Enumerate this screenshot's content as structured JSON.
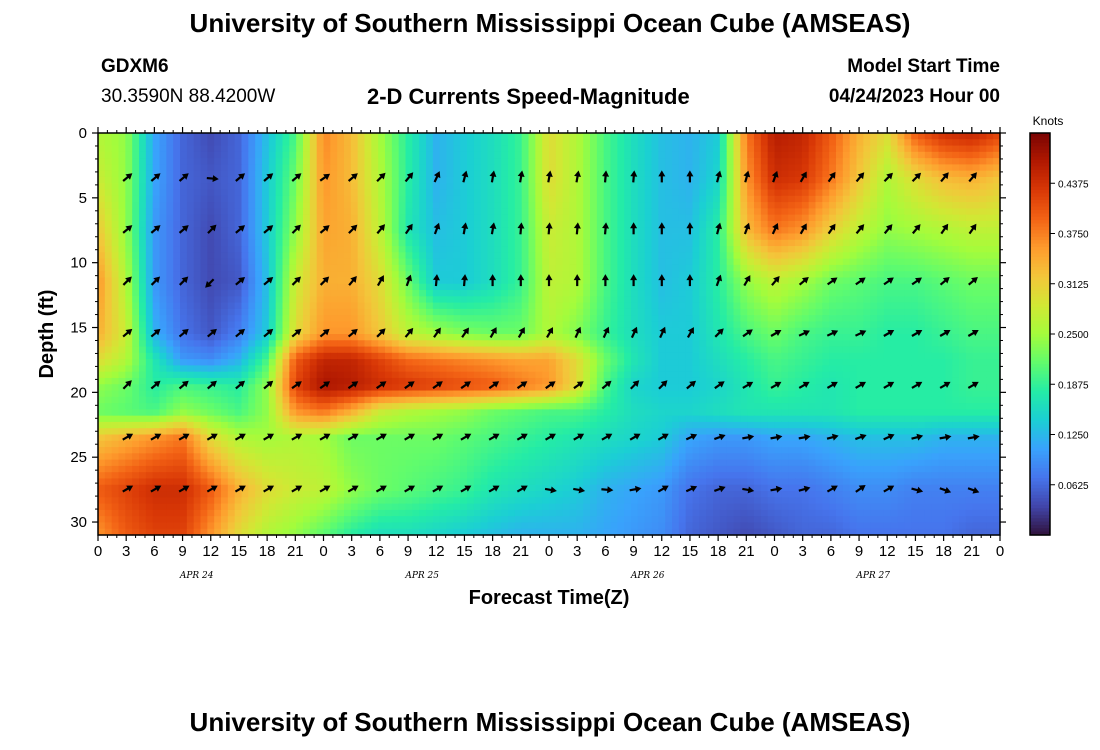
{
  "header": {
    "title": "University of Southern Mississippi Ocean Cube (AMSEAS)",
    "station": "GDXM6",
    "coords": "30.3590N  88.4200W",
    "subtitle": "2-D Currents Speed-Magnitude",
    "start_label": "Model Start Time",
    "start_value": "04/24/2023 Hour 00"
  },
  "footer": {
    "title": "University of Southern Mississippi Ocean Cube (AMSEAS)"
  },
  "chart_data": {
    "type": "heatmap",
    "title": "2-D Currents Speed-Magnitude",
    "xlabel": "Forecast Time(Z)",
    "ylabel": "Depth (ft)",
    "x_range_hours": [
      0,
      96
    ],
    "x_tick_labels": [
      "0",
      "3",
      "6",
      "9",
      "12",
      "15",
      "18",
      "21",
      "0",
      "3",
      "6",
      "9",
      "12",
      "15",
      "18",
      "21",
      "0",
      "3",
      "6",
      "9",
      "12",
      "15",
      "18",
      "21",
      "0",
      "3",
      "6",
      "9",
      "12",
      "15",
      "18",
      "21",
      "0"
    ],
    "date_labels": [
      {
        "label": "APR 24",
        "hour": 10.5
      },
      {
        "label": "APR 25",
        "hour": 34.5
      },
      {
        "label": "APR 26",
        "hour": 58.5
      },
      {
        "label": "APR 27",
        "hour": 82.5
      }
    ],
    "y_range_ft": [
      0,
      31
    ],
    "y_ticks": [
      0,
      5,
      10,
      15,
      20,
      25,
      30
    ],
    "colorbar": {
      "unit": "Knots",
      "range": [
        0.0,
        0.5
      ],
      "tick_labels": [
        "0.4375",
        "0.3750",
        "0.3125",
        "0.2500",
        "0.1875",
        "0.1250",
        "0.0625"
      ],
      "colors": [
        "#30123b",
        "#4145ab",
        "#4675ed",
        "#39a2fc",
        "#1bcfd4",
        "#24eca6",
        "#61fc6c",
        "#a4fc3b",
        "#d1e834",
        "#f3c63a",
        "#fe9b2d",
        "#f36315",
        "#d93806",
        "#b11901",
        "#7a0403"
      ]
    },
    "arrow_depths_ft": [
      3.5,
      7.5,
      11.5,
      15.5,
      19.5,
      23.5,
      27.5
    ],
    "speed_grid_depths_ft": [
      0,
      3.5,
      7.5,
      11.5,
      15.5,
      17.5,
      19.5,
      21.5,
      23.5,
      27.5,
      31
    ],
    "speed_grid_hours": [
      0,
      3,
      6,
      9,
      12,
      15,
      18,
      21,
      24,
      27,
      30,
      33,
      36,
      39,
      42,
      45,
      48,
      51,
      54,
      57,
      60,
      63,
      66,
      69,
      72,
      75,
      78,
      81,
      84,
      87,
      90,
      93,
      96
    ],
    "speed_knots": [
      [
        0.26,
        0.24,
        0.11,
        0.06,
        0.04,
        0.06,
        0.13,
        0.2,
        0.37,
        0.33,
        0.25,
        0.18,
        0.12,
        0.14,
        0.16,
        0.19,
        0.3,
        0.26,
        0.2,
        0.16,
        0.13,
        0.12,
        0.14,
        0.38,
        0.46,
        0.45,
        0.4,
        0.34,
        0.3,
        0.4,
        0.44,
        0.45,
        0.42
      ],
      [
        0.28,
        0.24,
        0.11,
        0.06,
        0.05,
        0.06,
        0.14,
        0.22,
        0.36,
        0.33,
        0.26,
        0.18,
        0.12,
        0.14,
        0.16,
        0.19,
        0.3,
        0.26,
        0.2,
        0.16,
        0.13,
        0.12,
        0.15,
        0.36,
        0.44,
        0.43,
        0.38,
        0.32,
        0.26,
        0.3,
        0.33,
        0.34,
        0.32
      ],
      [
        0.32,
        0.24,
        0.1,
        0.06,
        0.04,
        0.06,
        0.14,
        0.24,
        0.35,
        0.34,
        0.27,
        0.17,
        0.13,
        0.14,
        0.16,
        0.19,
        0.28,
        0.26,
        0.2,
        0.16,
        0.13,
        0.13,
        0.18,
        0.33,
        0.38,
        0.36,
        0.31,
        0.27,
        0.24,
        0.25,
        0.26,
        0.27,
        0.27
      ],
      [
        0.36,
        0.26,
        0.1,
        0.06,
        0.04,
        0.05,
        0.13,
        0.28,
        0.34,
        0.34,
        0.3,
        0.22,
        0.14,
        0.14,
        0.16,
        0.19,
        0.27,
        0.26,
        0.2,
        0.16,
        0.13,
        0.14,
        0.18,
        0.24,
        0.27,
        0.25,
        0.22,
        0.21,
        0.2,
        0.2,
        0.21,
        0.22,
        0.22
      ],
      [
        0.34,
        0.28,
        0.12,
        0.07,
        0.05,
        0.08,
        0.14,
        0.3,
        0.36,
        0.36,
        0.32,
        0.27,
        0.25,
        0.23,
        0.22,
        0.22,
        0.26,
        0.23,
        0.19,
        0.16,
        0.14,
        0.14,
        0.17,
        0.2,
        0.22,
        0.2,
        0.19,
        0.19,
        0.18,
        0.18,
        0.19,
        0.2,
        0.2
      ],
      [
        0.3,
        0.26,
        0.17,
        0.1,
        0.09,
        0.12,
        0.2,
        0.4,
        0.45,
        0.45,
        0.42,
        0.39,
        0.38,
        0.37,
        0.36,
        0.35,
        0.35,
        0.3,
        0.22,
        0.17,
        0.14,
        0.14,
        0.16,
        0.18,
        0.2,
        0.19,
        0.18,
        0.18,
        0.18,
        0.18,
        0.18,
        0.19,
        0.19
      ],
      [
        0.24,
        0.22,
        0.18,
        0.2,
        0.19,
        0.18,
        0.24,
        0.42,
        0.47,
        0.46,
        0.44,
        0.43,
        0.42,
        0.41,
        0.4,
        0.38,
        0.36,
        0.3,
        0.2,
        0.15,
        0.14,
        0.14,
        0.15,
        0.17,
        0.19,
        0.18,
        0.17,
        0.18,
        0.18,
        0.18,
        0.18,
        0.19,
        0.19
      ],
      [
        0.22,
        0.21,
        0.2,
        0.24,
        0.22,
        0.2,
        0.24,
        0.36,
        0.38,
        0.34,
        0.28,
        0.26,
        0.25,
        0.24,
        0.22,
        0.21,
        0.2,
        0.2,
        0.18,
        0.16,
        0.15,
        0.15,
        0.16,
        0.17,
        0.17,
        0.17,
        0.17,
        0.18,
        0.18,
        0.18,
        0.18,
        0.18,
        0.18
      ],
      [
        0.32,
        0.34,
        0.36,
        0.38,
        0.3,
        0.26,
        0.25,
        0.26,
        0.25,
        0.22,
        0.22,
        0.22,
        0.22,
        0.21,
        0.2,
        0.19,
        0.18,
        0.17,
        0.16,
        0.15,
        0.14,
        0.11,
        0.1,
        0.1,
        0.11,
        0.11,
        0.12,
        0.13,
        0.13,
        0.13,
        0.12,
        0.12,
        0.12
      ],
      [
        0.4,
        0.42,
        0.44,
        0.44,
        0.4,
        0.34,
        0.3,
        0.28,
        0.27,
        0.24,
        0.22,
        0.21,
        0.2,
        0.19,
        0.17,
        0.16,
        0.15,
        0.14,
        0.12,
        0.11,
        0.1,
        0.07,
        0.06,
        0.06,
        0.07,
        0.07,
        0.08,
        0.09,
        0.09,
        0.08,
        0.08,
        0.08,
        0.08
      ],
      [
        0.36,
        0.4,
        0.42,
        0.42,
        0.36,
        0.3,
        0.26,
        0.24,
        0.21,
        0.18,
        0.16,
        0.16,
        0.15,
        0.14,
        0.13,
        0.12,
        0.12,
        0.12,
        0.11,
        0.1,
        0.09,
        0.06,
        0.05,
        0.04,
        0.05,
        0.06,
        0.06,
        0.07,
        0.07,
        0.07,
        0.07,
        0.06,
        0.06
      ]
    ],
    "arrow_direction_deg": [
      [
        55,
        50,
        50,
        50,
        95,
        50,
        50,
        50,
        55,
        50,
        45,
        40,
        25,
        15,
        10,
        10,
        10,
        10,
        5,
        5,
        0,
        0,
        15,
        15,
        20,
        30,
        35,
        40,
        45,
        45,
        40,
        40,
        35
      ],
      [
        55,
        50,
        50,
        50,
        45,
        50,
        50,
        45,
        50,
        45,
        40,
        35,
        20,
        10,
        10,
        5,
        5,
        5,
        5,
        0,
        0,
        0,
        15,
        20,
        25,
        30,
        35,
        40,
        40,
        40,
        35,
        35,
        35
      ],
      [
        40,
        45,
        45,
        45,
        225,
        50,
        50,
        45,
        45,
        40,
        30,
        20,
        5,
        5,
        0,
        0,
        0,
        0,
        0,
        0,
        0,
        0,
        20,
        30,
        40,
        50,
        55,
        55,
        55,
        55,
        50,
        50,
        50
      ],
      [
        45,
        50,
        50,
        50,
        50,
        50,
        50,
        50,
        50,
        50,
        45,
        40,
        35,
        35,
        30,
        30,
        30,
        25,
        25,
        25,
        25,
        30,
        45,
        55,
        60,
        65,
        65,
        65,
        60,
        60,
        60,
        60,
        60
      ],
      [
        45,
        45,
        50,
        50,
        50,
        50,
        50,
        55,
        55,
        55,
        55,
        55,
        55,
        55,
        55,
        55,
        55,
        55,
        50,
        45,
        45,
        50,
        55,
        60,
        60,
        60,
        60,
        60,
        60,
        60,
        60,
        60,
        60
      ],
      [
        60,
        60,
        60,
        60,
        60,
        60,
        60,
        60,
        60,
        60,
        60,
        60,
        60,
        60,
        60,
        60,
        60,
        60,
        60,
        60,
        60,
        65,
        70,
        80,
        80,
        80,
        75,
        70,
        65,
        75,
        80,
        80,
        75
      ],
      [
        60,
        60,
        60,
        60,
        60,
        60,
        60,
        60,
        60,
        60,
        60,
        60,
        60,
        60,
        60,
        60,
        100,
        100,
        95,
        80,
        60,
        65,
        70,
        100,
        80,
        75,
        60,
        55,
        60,
        105,
        110,
        110,
        115
      ]
    ]
  }
}
